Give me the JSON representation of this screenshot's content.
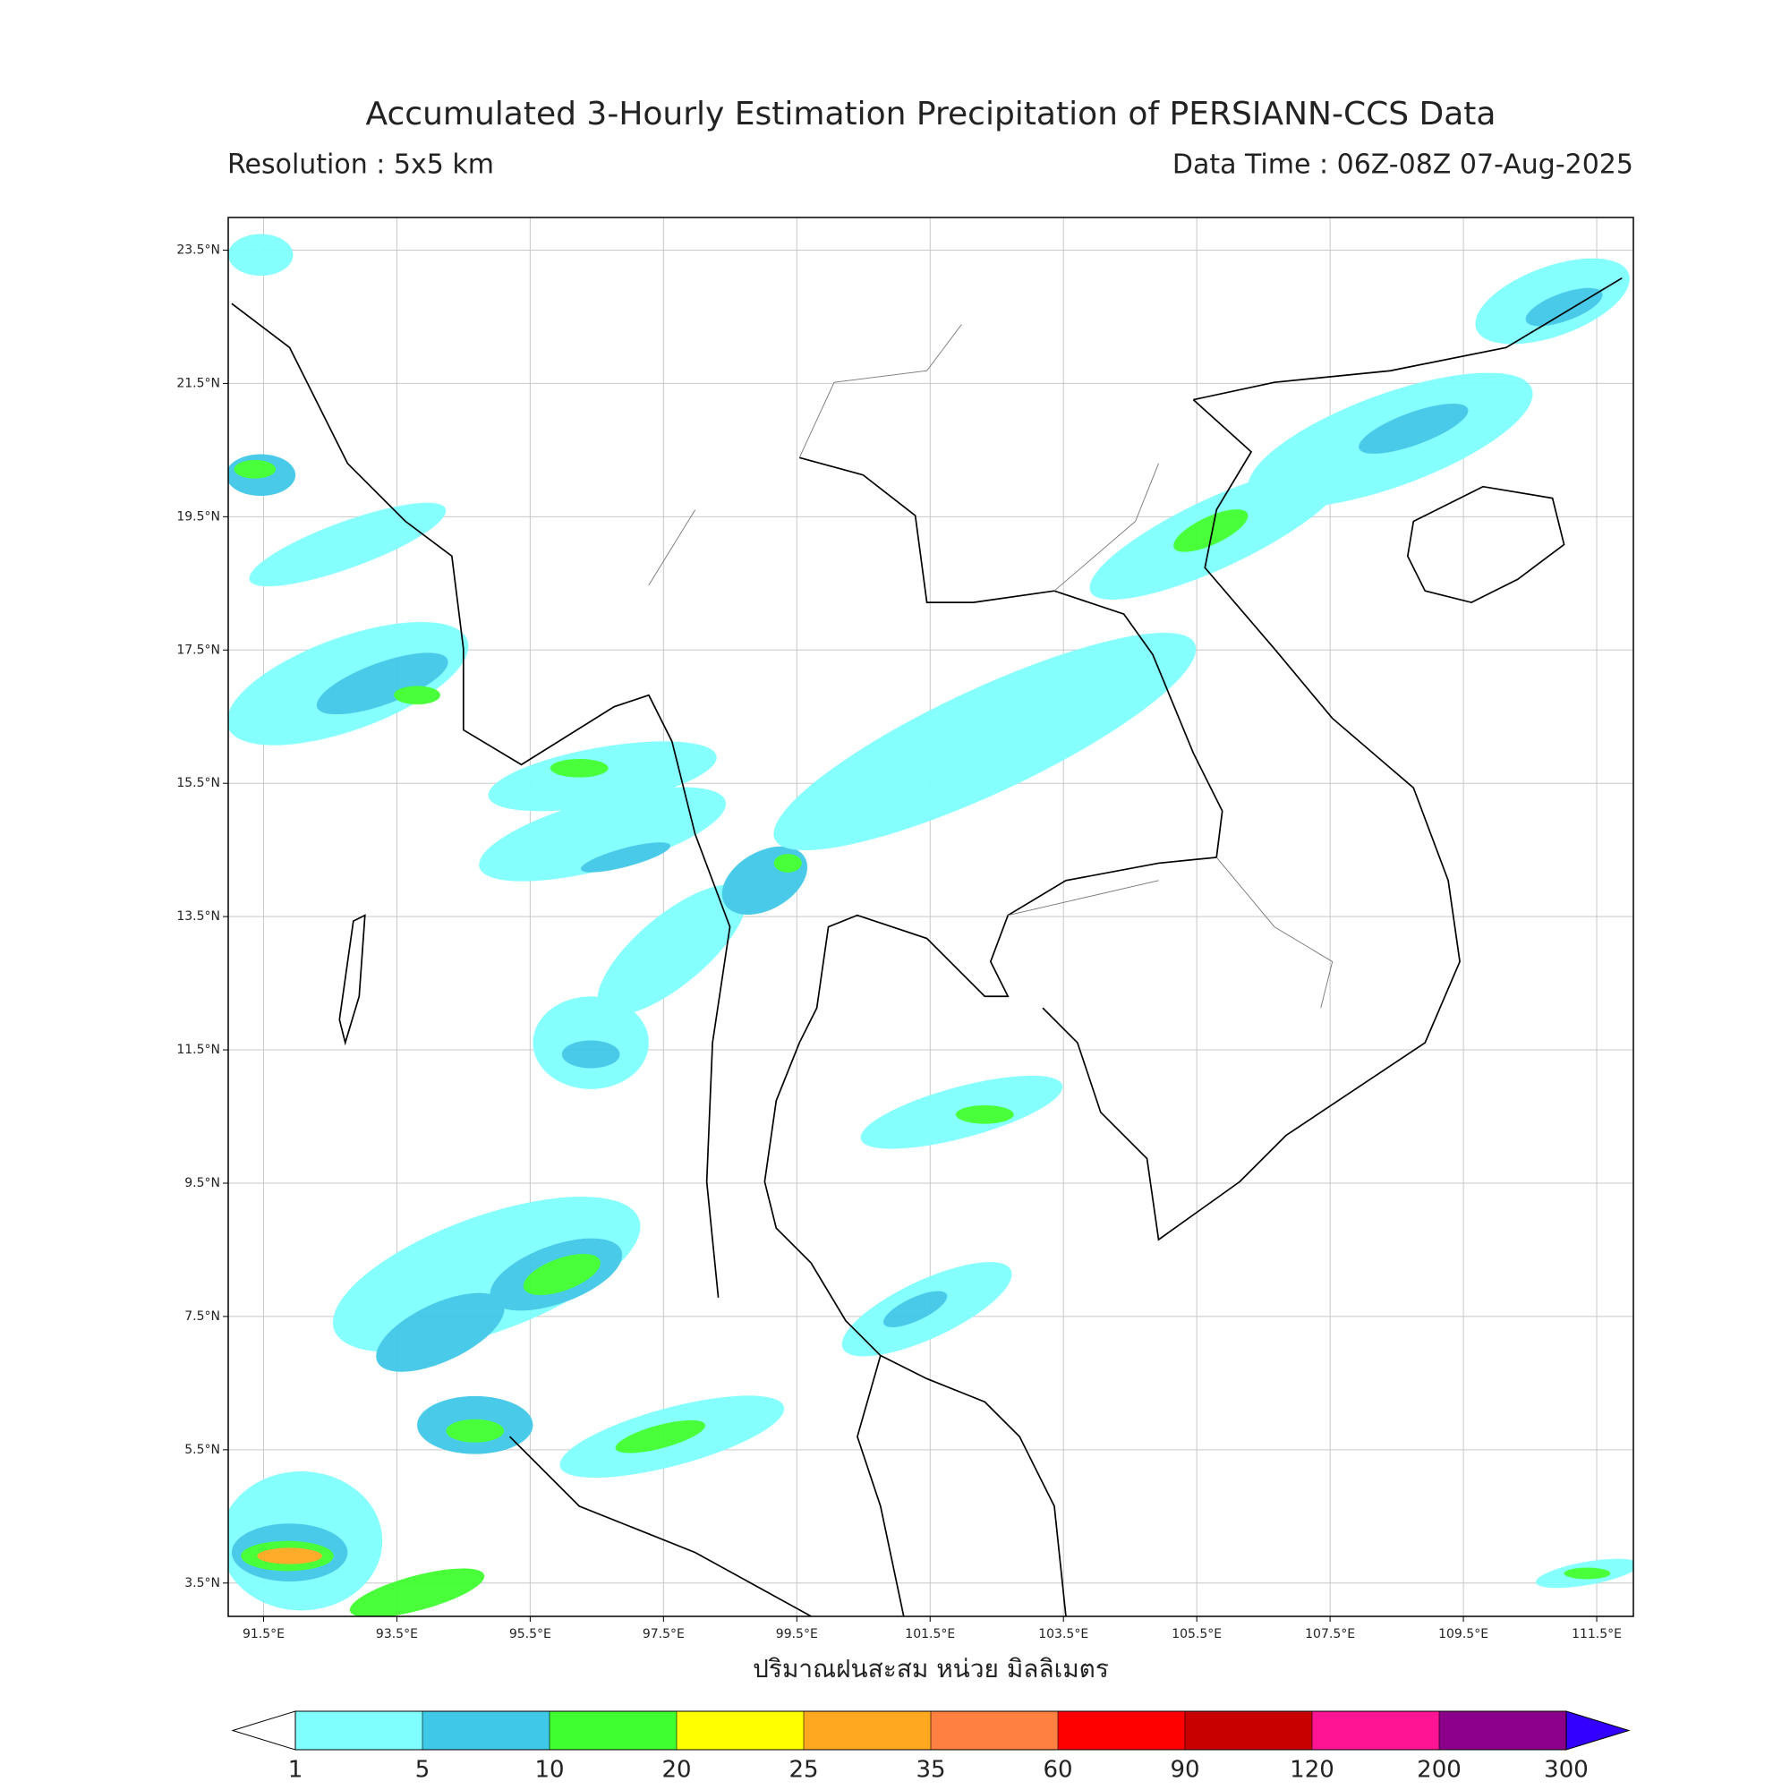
{
  "title": "Accumulated 3-Hourly Estimation Precipitation of PERSIANN-CCS Data",
  "resolution": "Resolution : 5x5 km",
  "data_time": "Data Time : 06Z-08Z 07-Aug-2025",
  "map": {
    "xlim": [
      90.97,
      112.05
    ],
    "ylim": [
      3.0,
      23.99
    ],
    "grid": true,
    "xticks": [
      {
        "value": 91.5,
        "label": "91.5°E"
      },
      {
        "value": 93.5,
        "label": "93.5°E"
      },
      {
        "value": 95.5,
        "label": "95.5°E"
      },
      {
        "value": 97.5,
        "label": "97.5°E"
      },
      {
        "value": 99.5,
        "label": "99.5°E"
      },
      {
        "value": 101.5,
        "label": "101.5°E"
      },
      {
        "value": 103.5,
        "label": "103.5°E"
      },
      {
        "value": 105.5,
        "label": "105.5°E"
      },
      {
        "value": 107.5,
        "label": "107.5°E"
      },
      {
        "value": 109.5,
        "label": "109.5°E"
      },
      {
        "value": 111.5,
        "label": "111.5°E"
      }
    ],
    "yticks": [
      {
        "value": 23.5,
        "label": "23.5°N"
      },
      {
        "value": 21.5,
        "label": "21.5°N"
      },
      {
        "value": 19.5,
        "label": "19.5°N"
      },
      {
        "value": 17.5,
        "label": "17.5°N"
      },
      {
        "value": 15.5,
        "label": "15.5°N"
      },
      {
        "value": 13.5,
        "label": "13.5°N"
      },
      {
        "value": 11.5,
        "label": "11.5°N"
      },
      {
        "value": 9.5,
        "label": "9.5°N"
      },
      {
        "value": 7.5,
        "label": "7.5°N"
      },
      {
        "value": 5.5,
        "label": "5.5°N"
      },
      {
        "value": 3.5,
        "label": "3.5°N"
      }
    ]
  },
  "axis_label": "ปริมาณฝนสะสม หน่วย มิลลิเมตร",
  "colorbar": {
    "levels": [
      1,
      5,
      10,
      20,
      25,
      35,
      60,
      90,
      120,
      200,
      300
    ],
    "colors": [
      "#80ffff",
      "#40c8e8",
      "#40ff30",
      "#ffff00",
      "#ffa820",
      "#ff8040",
      "#ff0000",
      "#c80000",
      "#ff1493",
      "#8b008b"
    ],
    "under_color": "#ffffff",
    "over_color": "#3300ff"
  }
}
